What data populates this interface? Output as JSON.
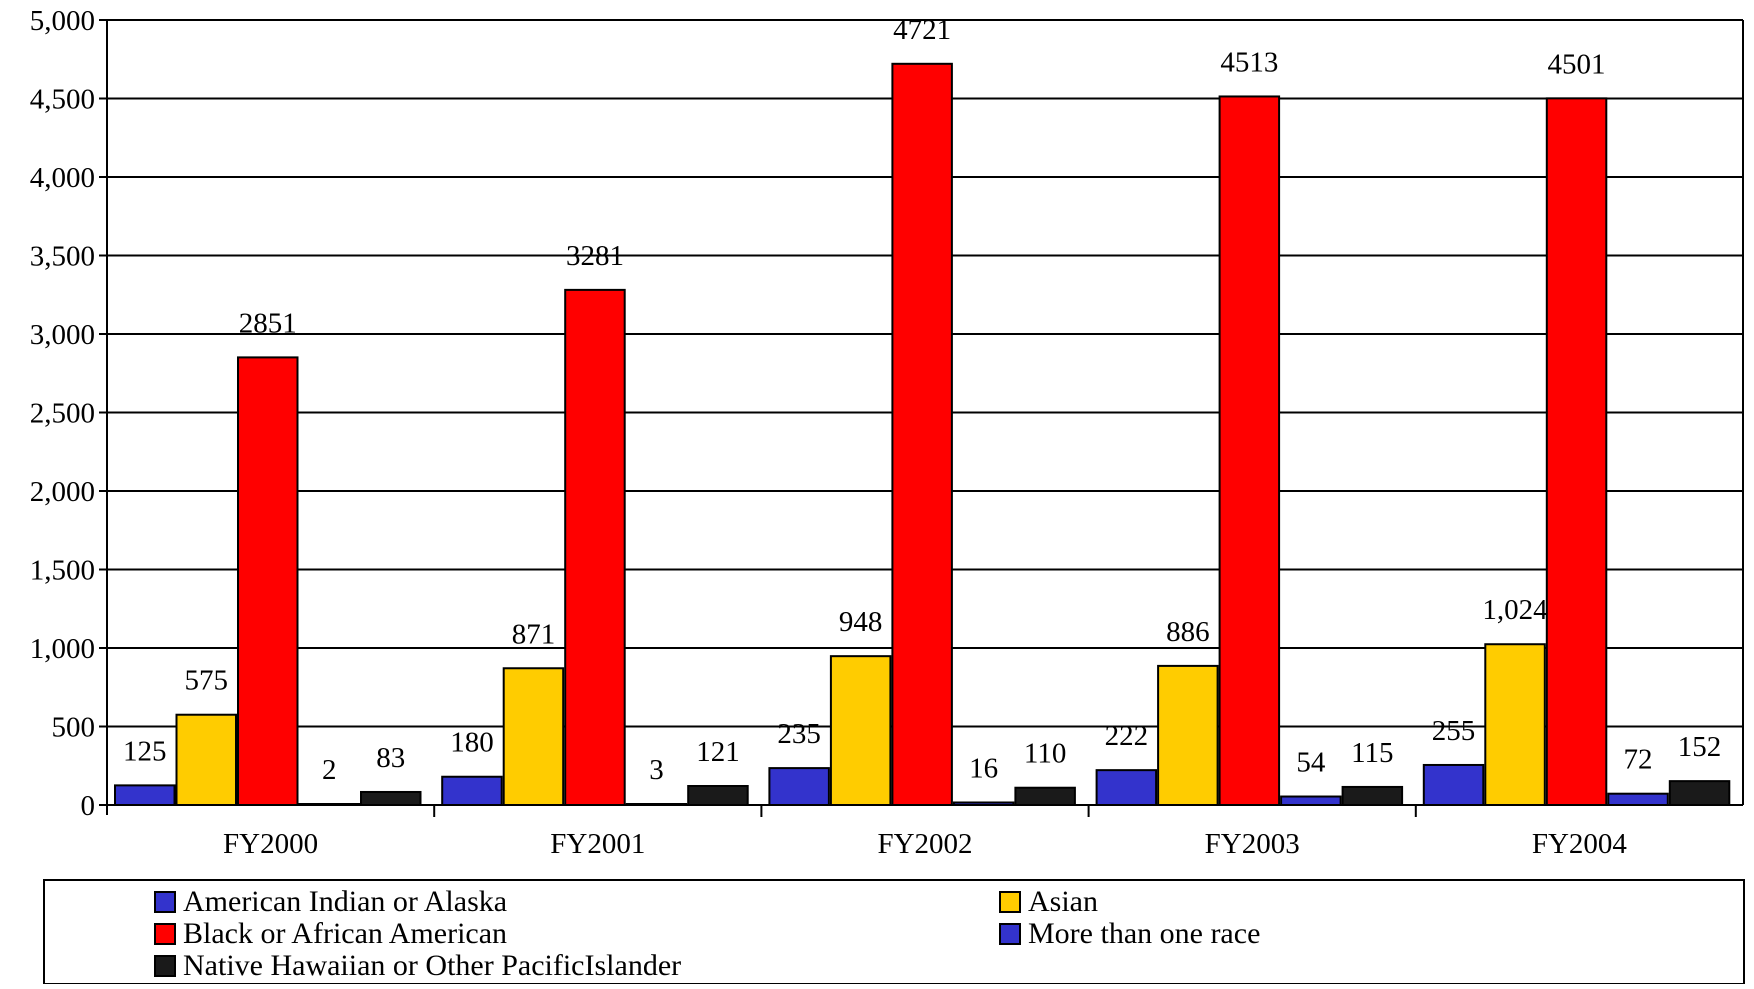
{
  "chart_data": {
    "type": "bar",
    "categories": [
      "FY2000",
      "FY2001",
      "FY2002",
      "FY2003",
      "FY2004"
    ],
    "ylim": [
      0,
      5000
    ],
    "y_ticks": [
      0,
      500,
      1000,
      1500,
      2000,
      2500,
      3000,
      3500,
      4000,
      4500,
      5000
    ],
    "y_tick_labels": [
      "0",
      "500",
      "1,000",
      "1,500",
      "2,000",
      "2,500",
      "3,000",
      "3,500",
      "4,000",
      "4,500",
      "5,000"
    ],
    "grid": "horizontal",
    "legend_position": "bottom",
    "series": [
      {
        "name": "American Indian or Alaska",
        "color": "#3333CC",
        "values": [
          125,
          180,
          235,
          222,
          255
        ],
        "labels": [
          "125",
          "180",
          "235",
          "222",
          "255"
        ]
      },
      {
        "name": "Asian",
        "color": "#FFCC00",
        "values": [
          575,
          871,
          948,
          886,
          1024
        ],
        "labels": [
          "575",
          "871",
          "948",
          "886",
          "1,024"
        ]
      },
      {
        "name": "Black or African American",
        "color": "#FF0000",
        "values": [
          2851,
          3281,
          4721,
          4513,
          4501
        ],
        "labels": [
          "2851",
          "3281",
          "4721",
          "4513",
          "4501"
        ]
      },
      {
        "name": "More than one race",
        "color": "#3333CC",
        "values": [
          2,
          3,
          16,
          54,
          72
        ],
        "labels": [
          "2",
          "3",
          "16",
          "54",
          "72"
        ]
      },
      {
        "name": "Native Hawaiian or Other PacificIslander",
        "color": "#1A1A1A",
        "values": [
          83,
          121,
          110,
          115,
          152
        ],
        "labels": [
          "83",
          "121",
          "110",
          "115",
          "152"
        ]
      }
    ]
  }
}
